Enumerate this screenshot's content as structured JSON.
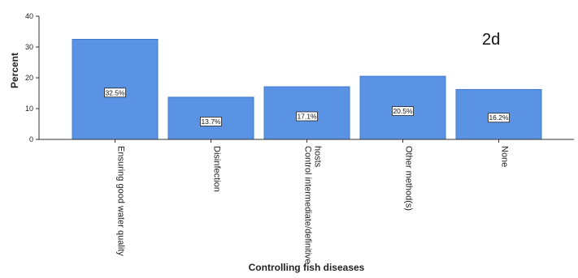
{
  "chart_data": {
    "type": "bar",
    "title": "",
    "panel_tag": "2d",
    "xlabel": "Controlling fish diseases",
    "ylabel": "Percent",
    "ylim": [
      0,
      40
    ],
    "yticks": [
      0,
      10,
      20,
      30,
      40
    ],
    "categories": [
      [
        "Ensuring good water quality"
      ],
      [
        "Disinfection"
      ],
      [
        "Control intermediate/definitive",
        "hosts"
      ],
      [
        "Other method(s)"
      ],
      [
        "None"
      ]
    ],
    "values": [
      32.5,
      13.7,
      17.1,
      20.5,
      16.2
    ],
    "data_labels": [
      "32.5%",
      "13.7%",
      "17.1%",
      "20.5%",
      "16.2%"
    ],
    "bar_color": "#5b93e4",
    "bar_edge_color": "#3f78cf",
    "grid": false,
    "legend": "none"
  }
}
